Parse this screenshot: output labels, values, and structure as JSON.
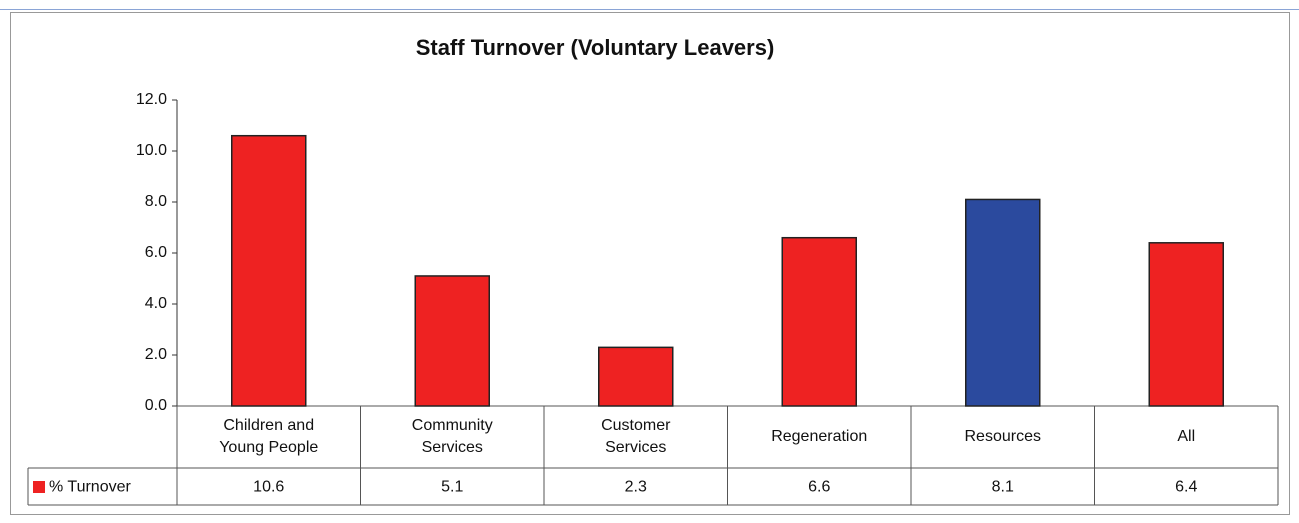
{
  "chart_data": {
    "type": "bar",
    "title": "Staff Turnover (Voluntary Leavers)",
    "categories": [
      "Children and Young People",
      "Community Services",
      "Customer Services",
      "Regeneration",
      "Resources",
      "All"
    ],
    "series": [
      {
        "name": "% Turnover",
        "color": "#ee2222",
        "colors": [
          "#ee2222",
          "#ee2222",
          "#ee2222",
          "#ee2222",
          "#2b4a9e",
          "#ee2222"
        ],
        "values": [
          10.6,
          5.1,
          2.3,
          6.6,
          8.1,
          6.4
        ]
      }
    ],
    "ylim": [
      0,
      12
    ],
    "yticks": [
      {
        "value": 0,
        "label": "0.0"
      },
      {
        "value": 2,
        "label": "2.0"
      },
      {
        "value": 4,
        "label": "4.0"
      },
      {
        "value": 6,
        "label": "6.0"
      },
      {
        "value": 8,
        "label": "8.0"
      },
      {
        "value": 10,
        "label": "10.0"
      },
      {
        "value": 12,
        "label": "12.0"
      }
    ],
    "grid": false
  }
}
